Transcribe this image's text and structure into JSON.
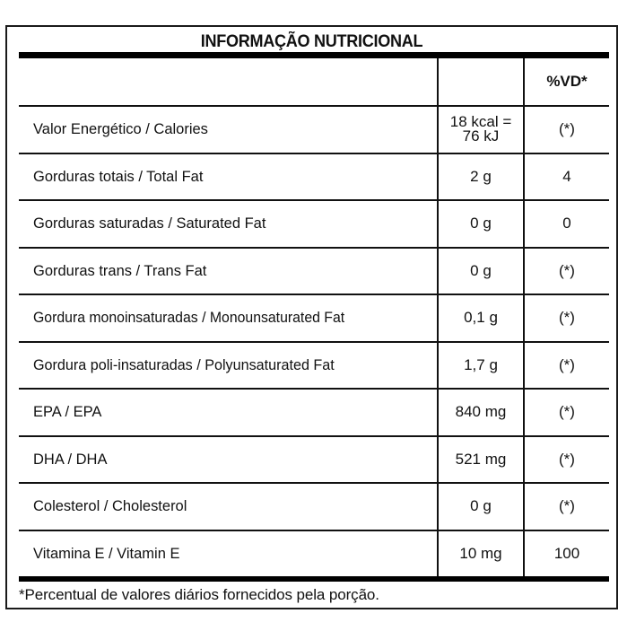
{
  "label": {
    "title": "INFORMAÇÃO NUTRICIONAL",
    "header": {
      "name": "",
      "quantity": "",
      "daily_value": "%VD*"
    },
    "rows": [
      {
        "name": "Valor Energético / Calories",
        "quantity": "18 kcal = 76 kJ",
        "quantity_line1": "18 kcal =",
        "quantity_line2": "76 kJ",
        "daily_value": "(*)"
      },
      {
        "name": "Gorduras totais / Total Fat",
        "quantity": "2 g",
        "daily_value": "4"
      },
      {
        "name": "Gorduras saturadas / Saturated Fat",
        "quantity": "0 g",
        "daily_value": "0"
      },
      {
        "name": "Gorduras trans / Trans Fat",
        "quantity": "0 g",
        "daily_value": "(*)"
      },
      {
        "name": "Gordura monoinsaturadas / Monounsaturated Fat",
        "quantity": "0,1 g",
        "daily_value": "(*)"
      },
      {
        "name": "Gordura poli-insaturadas / Polyunsaturated Fat",
        "quantity": "1,7 g",
        "daily_value": "(*)"
      },
      {
        "name": "EPA / EPA",
        "quantity": "840 mg",
        "daily_value": "(*)"
      },
      {
        "name": "DHA / DHA",
        "quantity": "521 mg",
        "daily_value": "(*)"
      },
      {
        "name": "Colesterol / Cholesterol",
        "quantity": "0 g",
        "daily_value": "(*)"
      },
      {
        "name": "Vitamina E / Vitamin E",
        "quantity": "10 mg",
        "daily_value": "100"
      }
    ],
    "footnote": "*Percentual de valores diários fornecidos pela porção."
  },
  "colors": {
    "border": "#111111",
    "text": "#111111",
    "background": "#ffffff"
  }
}
